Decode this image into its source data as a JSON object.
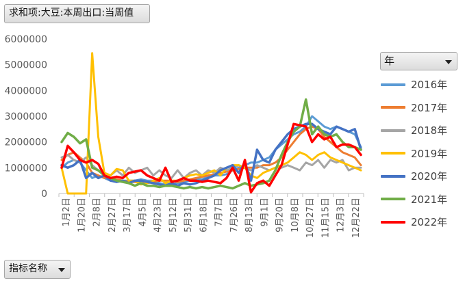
{
  "value_field": {
    "label": "求和项:大豆:本周出口:当周值"
  },
  "legend_field": {
    "label": "年"
  },
  "axis_field": {
    "label": "指标名称"
  },
  "legend": {
    "items": [
      {
        "label": "2016年",
        "color": "#5b9bd5"
      },
      {
        "label": "2017年",
        "color": "#ed7d31"
      },
      {
        "label": "2018年",
        "color": "#a5a5a5"
      },
      {
        "label": "2019年",
        "color": "#ffc000"
      },
      {
        "label": "2020年",
        "color": "#4472c4"
      },
      {
        "label": "2021年",
        "color": "#70ad47"
      },
      {
        "label": "2022年",
        "color": "#ff0000"
      }
    ]
  },
  "chart_data": {
    "type": "line",
    "x_tick_labels": [
      "1月2日",
      "1月20日",
      "2月8日",
      "2月27日",
      "3月17日",
      "4月5日",
      "4月23日",
      "5月12日",
      "5月31日",
      "6月18日",
      "7月7日",
      "7月26日",
      "8月13日",
      "9月1日",
      "9月20日",
      "10月8日",
      "10月27日",
      "11月15日",
      "12月3日",
      "12月22日"
    ],
    "y_tick_labels": [
      "0",
      "1000000",
      "2000000",
      "3000000",
      "4000000",
      "5000000",
      "6000000"
    ],
    "ylim": [
      0,
      6000000
    ],
    "grid": false,
    "legend_position": "right",
    "series": [
      {
        "name": "2016年",
        "color": "#5b9bd5",
        "width": 3,
        "values": [
          1000000,
          1200000,
          1300000,
          1200000,
          900000,
          600000,
          700000,
          600000,
          500000,
          450000,
          500000,
          500000,
          500000,
          550000,
          500000,
          500000,
          400000,
          350000,
          350000,
          400000,
          450000,
          500000,
          550000,
          550000,
          650000,
          700000,
          700000,
          750000,
          900000,
          1000000,
          1100000,
          1200000,
          1200000,
          1300000,
          1400000,
          1700000,
          1900000,
          2100000,
          2300000,
          2400000,
          2600000,
          3000000,
          2800000,
          2600000,
          2500000,
          2600000,
          2500000,
          2400000,
          2300000,
          1800000
        ]
      },
      {
        "name": "2017年",
        "color": "#ed7d31",
        "width": 3,
        "values": [
          1300000,
          1500000,
          1600000,
          1400000,
          1200000,
          800000,
          700000,
          600000,
          600000,
          550000,
          500000,
          450000,
          450000,
          400000,
          400000,
          450000,
          500000,
          500000,
          500000,
          450000,
          500000,
          550000,
          600000,
          650000,
          700000,
          750000,
          800000,
          850000,
          900000,
          950000,
          1000000,
          1000000,
          1000000,
          1100000,
          1100000,
          1200000,
          1400000,
          1700000,
          2000000,
          2300000,
          2500000,
          2600000,
          2500000,
          2200000,
          2000000,
          1800000,
          1600000,
          1500000,
          1400000,
          1100000
        ]
      },
      {
        "name": "2018年",
        "color": "#a5a5a5",
        "width": 3,
        "values": [
          1400000,
          1500000,
          1300000,
          1200000,
          1400000,
          1100000,
          900000,
          800000,
          700000,
          900000,
          700000,
          1000000,
          800000,
          900000,
          1000000,
          700000,
          900000,
          700000,
          600000,
          900000,
          600000,
          800000,
          900000,
          700000,
          900000,
          800000,
          1000000,
          900000,
          1000000,
          1100000,
          1000000,
          900000,
          1100000,
          1000000,
          900000,
          1000000,
          1000000,
          1100000,
          1000000,
          900000,
          1200000,
          1100000,
          1300000,
          1000000,
          1300000,
          1200000,
          1300000,
          900000,
          1000000,
          1000000
        ]
      },
      {
        "name": "2019年",
        "color": "#ffc000",
        "width": 3,
        "values": [
          1000000,
          0,
          0,
          0,
          0,
          5450000,
          2200000,
          800000,
          700000,
          950000,
          900000,
          500000,
          500000,
          350000,
          400000,
          500000,
          600000,
          400000,
          500000,
          500000,
          600000,
          700000,
          750000,
          700000,
          800000,
          900000,
          700000,
          1000000,
          1100000,
          1100000,
          1000000,
          700000,
          600000,
          800000,
          900000,
          1000000,
          1100000,
          1200000,
          1400000,
          1600000,
          1500000,
          1300000,
          1500000,
          1600000,
          1400000,
          1300000,
          1200000,
          1100000,
          1000000,
          900000
        ]
      },
      {
        "name": "2020年",
        "color": "#4472c4",
        "width": 3.5,
        "values": [
          1100000,
          1000000,
          1100000,
          1300000,
          600000,
          800000,
          600000,
          700000,
          500000,
          450000,
          500000,
          400000,
          500000,
          500000,
          450000,
          400000,
          350000,
          300000,
          400000,
          300000,
          400000,
          350000,
          400000,
          500000,
          600000,
          700000,
          900000,
          1000000,
          1100000,
          800000,
          1200000,
          500000,
          1700000,
          1300000,
          1200000,
          1700000,
          2000000,
          2300000,
          2500000,
          2600000,
          2700000,
          2700000,
          2500000,
          2400000,
          2300000,
          2600000,
          2500000,
          2400000,
          2500000,
          1700000
        ]
      },
      {
        "name": "2021年",
        "color": "#70ad47",
        "width": 3.5,
        "values": [
          2000000,
          2350000,
          2200000,
          1950000,
          2100000,
          1000000,
          900000,
          700000,
          600000,
          500000,
          450000,
          400000,
          300000,
          400000,
          300000,
          300000,
          250000,
          300000,
          300000,
          250000,
          200000,
          250000,
          200000,
          250000,
          200000,
          250000,
          300000,
          250000,
          200000,
          300000,
          400000,
          300000,
          350000,
          400000,
          500000,
          900000,
          1500000,
          2000000,
          2400000,
          2600000,
          3650000,
          2300000,
          2600000,
          2300000,
          2200000,
          2300000,
          2000000,
          1800000,
          1800000,
          1700000
        ]
      },
      {
        "name": "2022年",
        "color": "#ff0000",
        "width": 3.5,
        "values": [
          1000000,
          1850000,
          1600000,
          1300000,
          1200000,
          1300000,
          1150000,
          700000,
          600000,
          650000,
          600000,
          800000,
          850000,
          900000,
          700000,
          600000,
          500000,
          1000000,
          450000,
          500000,
          600000,
          500000,
          500000,
          450000,
          500000,
          450000,
          400000,
          600000,
          1000000,
          500000,
          1300000,
          50000,
          400000,
          500000,
          300000,
          700000,
          1100000,
          1900000,
          2700000,
          2650000,
          2600000,
          2000000,
          2300000,
          2100000,
          2200000,
          1800000,
          1900000,
          1900000,
          1800000,
          1500000
        ]
      }
    ]
  }
}
